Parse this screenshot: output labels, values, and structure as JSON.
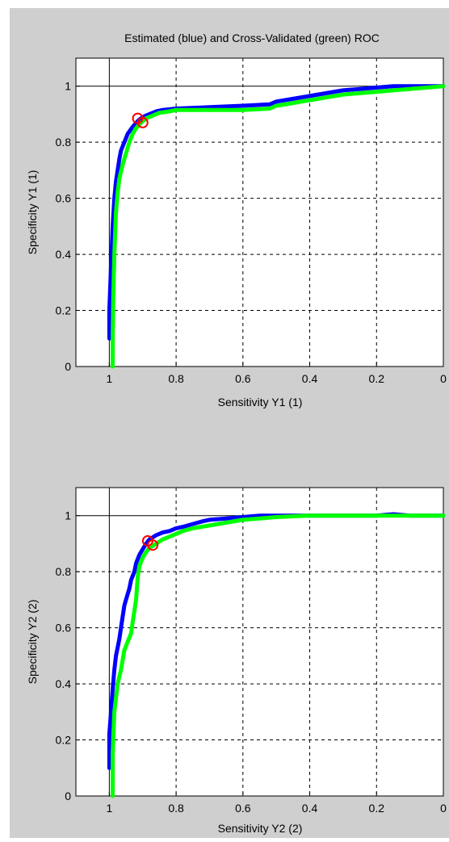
{
  "figure": {
    "background": "#cfcfcf",
    "plot_background": "#ffffff",
    "colors": {
      "estimated": "#0000ff",
      "cross_validated": "#00ff00",
      "marker": "#ff0000"
    }
  },
  "chart_data": [
    {
      "type": "line",
      "title": "Estimated (blue) and Cross-Validated (green) ROC",
      "xlabel": "Sensitivity Y1 (1)",
      "ylabel": "Specificity Y1 (1)",
      "xlim": [
        1.1,
        0
      ],
      "ylim": [
        0,
        1.1
      ],
      "x_reversed": true,
      "grid": true,
      "xticks": [
        1,
        0.8,
        0.6,
        0.4,
        0.2,
        0
      ],
      "xtick_labels": [
        "1",
        "0.8",
        "0.6",
        "0.4",
        "0.2",
        "0"
      ],
      "yticks": [
        0,
        0.2,
        0.4,
        0.6,
        0.8,
        1
      ],
      "ytick_labels": [
        "0",
        "0.2",
        "0.4",
        "0.6",
        "0.8",
        "1"
      ],
      "series": [
        {
          "color": "#0000ff",
          "x": [
            1,
            1,
            0.995,
            0.99,
            0.985,
            0.98,
            0.975,
            0.97,
            0.965,
            0.955,
            0.945,
            0.93,
            0.915,
            0.9,
            0.88,
            0.86,
            0.84,
            0.8,
            0.7,
            0.6,
            0.52,
            0.5,
            0.45,
            0.4,
            0.35,
            0.3,
            0.25,
            0.2,
            0.15,
            0.1,
            0.05,
            0
          ],
          "y": [
            0.1,
            0.2,
            0.35,
            0.5,
            0.6,
            0.66,
            0.7,
            0.74,
            0.77,
            0.8,
            0.83,
            0.855,
            0.875,
            0.89,
            0.9,
            0.91,
            0.915,
            0.92,
            0.925,
            0.93,
            0.935,
            0.945,
            0.955,
            0.965,
            0.975,
            0.985,
            0.99,
            0.995,
            1,
            1,
            1,
            1
          ]
        },
        {
          "color": "#00ff00",
          "x": [
            0.99,
            0.99,
            0.988,
            0.985,
            0.98,
            0.975,
            0.97,
            0.96,
            0.95,
            0.94,
            0.93,
            0.92,
            0.905,
            0.89,
            0.87,
            0.85,
            0.82,
            0.8,
            0.7,
            0.6,
            0.52,
            0.5,
            0.45,
            0.4,
            0.35,
            0.3,
            0.25,
            0.2,
            0.15,
            0.1,
            0.05,
            0
          ],
          "y": [
            0,
            0.1,
            0.25,
            0.4,
            0.55,
            0.62,
            0.67,
            0.72,
            0.76,
            0.8,
            0.83,
            0.85,
            0.87,
            0.885,
            0.895,
            0.905,
            0.91,
            0.915,
            0.915,
            0.915,
            0.92,
            0.93,
            0.94,
            0.95,
            0.96,
            0.97,
            0.975,
            0.98,
            0.985,
            0.99,
            0.995,
            1
          ]
        }
      ],
      "markers": [
        {
          "x": 0.915,
          "y": 0.885,
          "color": "#ff0000"
        },
        {
          "x": 0.9,
          "y": 0.87,
          "color": "#ff0000"
        }
      ]
    },
    {
      "type": "line",
      "title": "",
      "xlabel": "Sensitivity Y2 (2)",
      "ylabel": "Specificity Y2 (2)",
      "xlim": [
        1.1,
        0
      ],
      "ylim": [
        0,
        1.1
      ],
      "x_reversed": true,
      "grid": true,
      "xticks": [
        1,
        0.8,
        0.6,
        0.4,
        0.2,
        0
      ],
      "xtick_labels": [
        "1",
        "0.8",
        "0.6",
        "0.4",
        "0.2",
        "0"
      ],
      "yticks": [
        0,
        0.2,
        0.4,
        0.6,
        0.8,
        1
      ],
      "ytick_labels": [
        "0",
        "0.2",
        "0.4",
        "0.6",
        "0.8",
        "1"
      ],
      "series": [
        {
          "color": "#0000ff",
          "x": [
            1,
            1,
            0.99,
            0.985,
            0.98,
            0.97,
            0.965,
            0.955,
            0.95,
            0.94,
            0.935,
            0.925,
            0.92,
            0.91,
            0.9,
            0.89,
            0.88,
            0.86,
            0.84,
            0.82,
            0.8,
            0.78,
            0.75,
            0.72,
            0.7,
            0.65,
            0.6,
            0.55,
            0.5,
            0.4,
            0.3,
            0.2,
            0.15,
            0.1,
            0
          ],
          "y": [
            0.1,
            0.22,
            0.38,
            0.45,
            0.5,
            0.56,
            0.6,
            0.68,
            0.7,
            0.74,
            0.77,
            0.8,
            0.83,
            0.86,
            0.88,
            0.9,
            0.915,
            0.93,
            0.94,
            0.945,
            0.955,
            0.96,
            0.97,
            0.98,
            0.985,
            0.99,
            0.995,
            1,
            1,
            1,
            1,
            1,
            1.005,
            1,
            1
          ]
        },
        {
          "color": "#00ff00",
          "x": [
            0.99,
            0.99,
            0.985,
            0.975,
            0.965,
            0.955,
            0.945,
            0.935,
            0.93,
            0.92,
            0.915,
            0.91,
            0.9,
            0.89,
            0.88,
            0.86,
            0.84,
            0.82,
            0.8,
            0.78,
            0.75,
            0.7,
            0.65,
            0.6,
            0.55,
            0.5,
            0.4,
            0.3,
            0.2,
            0.1,
            0
          ],
          "y": [
            0,
            0.15,
            0.3,
            0.4,
            0.45,
            0.52,
            0.55,
            0.58,
            0.62,
            0.7,
            0.78,
            0.82,
            0.85,
            0.87,
            0.885,
            0.9,
            0.915,
            0.925,
            0.935,
            0.945,
            0.955,
            0.965,
            0.975,
            0.985,
            0.99,
            0.995,
            1,
            1,
            1,
            1,
            1
          ]
        }
      ],
      "markers": [
        {
          "x": 0.885,
          "y": 0.91,
          "color": "#ff0000"
        },
        {
          "x": 0.87,
          "y": 0.895,
          "color": "#ff0000"
        }
      ]
    }
  ]
}
